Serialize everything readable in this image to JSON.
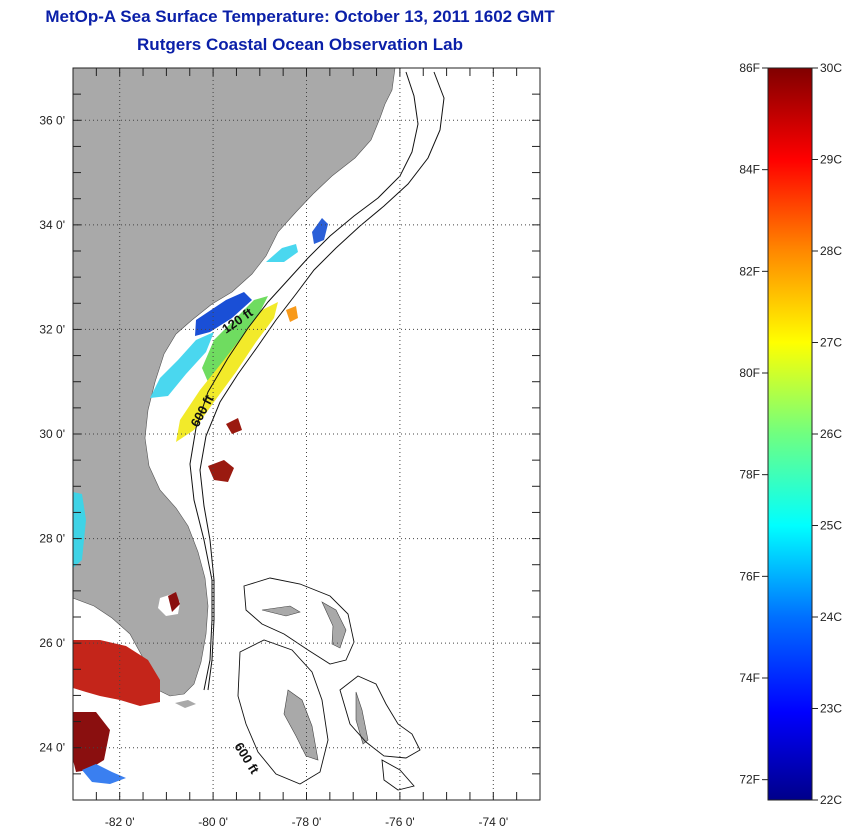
{
  "title": {
    "line1": "MetOp-A Sea Surface Temperature:  October 13, 2011 1602 GMT",
    "line2": "Rutgers Coastal Ocean Observation Lab"
  },
  "map": {
    "lon_range": [
      -83.0,
      -73.0
    ],
    "lat_range": [
      23.0,
      37.0
    ],
    "x_ticks": [
      {
        "value": -82,
        "label": "-82 0'"
      },
      {
        "value": -80,
        "label": "-80 0'"
      },
      {
        "value": -78,
        "label": "-78 0'"
      },
      {
        "value": -76,
        "label": "-76 0'"
      },
      {
        "value": -74,
        "label": "-74 0'"
      }
    ],
    "y_ticks": [
      {
        "value": 36,
        "label": "36 0'"
      },
      {
        "value": 34,
        "label": "34 0'"
      },
      {
        "value": 32,
        "label": "32 0'"
      },
      {
        "value": 30,
        "label": "30 0'"
      },
      {
        "value": 28,
        "label": "28 0'"
      },
      {
        "value": 26,
        "label": "26 0'"
      },
      {
        "value": 24,
        "label": "24 0'"
      }
    ],
    "contour_labels": [
      "120 ft",
      "600 ft",
      "600 ft"
    ],
    "grid": "dotted",
    "land_color": "#a9a9a9"
  },
  "colorbar": {
    "min_c": 22,
    "max_c": 30,
    "fahrenheit_labels": [
      "86F",
      "84F",
      "82F",
      "80F",
      "78F",
      "76F",
      "74F",
      "72F"
    ],
    "celsius_labels": [
      "30C",
      "29C",
      "28C",
      "27C",
      "26C",
      "25C",
      "24C",
      "23C",
      "22C"
    ]
  }
}
